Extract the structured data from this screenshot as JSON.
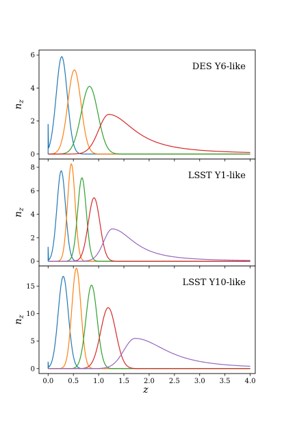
{
  "chart_data": [
    {
      "type": "line",
      "title": "DES Y6-like",
      "ylabel": "n_z",
      "xlabel": "",
      "ylim": [
        -0.3,
        6.3
      ],
      "xlim": [
        -0.18,
        4.1
      ],
      "yticks": [
        0,
        2,
        4,
        6
      ],
      "series": [
        {
          "color": "#1f77b4",
          "kind": "gauss",
          "mu": 0.27,
          "sigma": 0.11,
          "peak": 5.9,
          "zmin": 0.0,
          "base": 1.8
        },
        {
          "color": "#ff7f0e",
          "kind": "gauss",
          "mu": 0.52,
          "sigma": 0.13,
          "peak": 5.1
        },
        {
          "color": "#2ca02c",
          "kind": "gauss",
          "mu": 0.82,
          "sigma": 0.165,
          "peak": 4.1
        },
        {
          "color": "#d62728",
          "kind": "skew",
          "mu": 1.2,
          "sigmaL": 0.2,
          "sigmaR": 0.45,
          "peak": 2.4,
          "tail": 0.55
        }
      ]
    },
    {
      "type": "line",
      "title": "LSST Y1-like",
      "ylabel": "n_z",
      "xlabel": "",
      "ylim": [
        -0.4,
        8.7
      ],
      "xlim": [
        -0.18,
        4.1
      ],
      "yticks": [
        0,
        2,
        4,
        6,
        8
      ],
      "series": [
        {
          "color": "#1f77b4",
          "kind": "gauss",
          "mu": 0.26,
          "sigma": 0.085,
          "peak": 7.7,
          "zmin": 0.0,
          "base": 1.2
        },
        {
          "color": "#ff7f0e",
          "kind": "gauss",
          "mu": 0.46,
          "sigma": 0.075,
          "peak": 8.3
        },
        {
          "color": "#2ca02c",
          "kind": "gauss",
          "mu": 0.67,
          "sigma": 0.085,
          "peak": 7.1
        },
        {
          "color": "#d62728",
          "kind": "gauss",
          "mu": 0.91,
          "sigma": 0.115,
          "peak": 5.4
        },
        {
          "color": "#9467bd",
          "kind": "skew",
          "mu": 1.27,
          "sigmaL": 0.17,
          "sigmaR": 0.38,
          "peak": 2.75,
          "tail": 0.6
        }
      ]
    },
    {
      "type": "line",
      "title": "LSST Y10-like",
      "ylabel": "n_z",
      "xlabel": "z",
      "ylim": [
        -0.9,
        18.7
      ],
      "xlim": [
        -0.18,
        4.1
      ],
      "yticks": [
        0,
        5,
        10,
        15
      ],
      "xticks": [
        "0.0",
        "0.5",
        "1.0",
        "1.5",
        "2.0",
        "2.5",
        "3.0",
        "3.5",
        "4.0"
      ],
      "series": [
        {
          "color": "#1f77b4",
          "kind": "gauss",
          "mu": 0.3,
          "sigma": 0.1,
          "peak": 16.8,
          "zmin": 0.0,
          "base": 1.2
        },
        {
          "color": "#ff7f0e",
          "kind": "gauss",
          "mu": 0.56,
          "sigma": 0.09,
          "peak": 18.3
        },
        {
          "color": "#2ca02c",
          "kind": "gauss",
          "mu": 0.86,
          "sigma": 0.11,
          "peak": 15.2
        },
        {
          "color": "#d62728",
          "kind": "gauss",
          "mu": 1.19,
          "sigma": 0.15,
          "peak": 11.1
        },
        {
          "color": "#9467bd",
          "kind": "skew",
          "mu": 1.72,
          "sigmaL": 0.22,
          "sigmaR": 0.55,
          "peak": 5.5,
          "tail": 0.62
        }
      ]
    }
  ]
}
